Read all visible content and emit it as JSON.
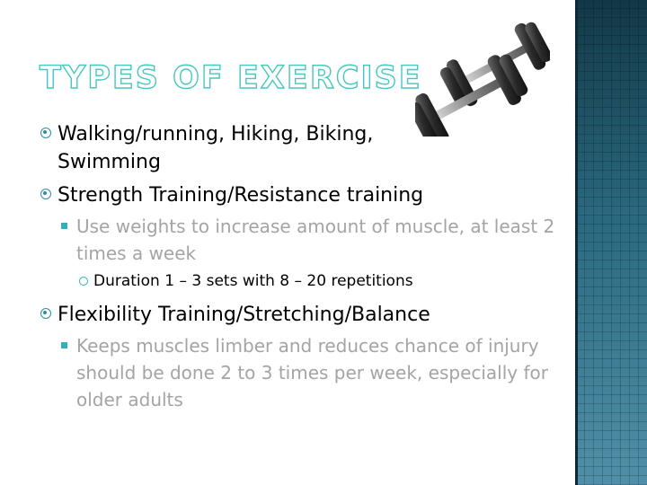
{
  "slide": {
    "title": "Types of Exercise",
    "items": [
      {
        "text": "Walking/running, Hiking, Biking,\nSwimming"
      },
      {
        "text": "Strength Training/Resistance training"
      },
      {
        "text": "Use weights to increase amount of muscle, at least 2 times a week"
      },
      {
        "text": "Duration 1 – 3 sets with 8 – 20 repetitions"
      },
      {
        "text": "Flexibility Training/Stretching/Balance"
      },
      {
        "text": "Keeps muscles limber and reduces chance of injury should be done 2 to 3 times per week, especially for older adults"
      }
    ]
  },
  "icons": {
    "dumbbell": "dumbbell-icon",
    "bullet_level1": "circled-dot-icon",
    "bullet_level2": "square-icon",
    "bullet_level3": "ring-icon"
  },
  "colors": {
    "title_outline": "#46c8c0",
    "accent": "#34aeb8",
    "side_band": "#1f5468",
    "sub_text": "#a4a4a4"
  }
}
